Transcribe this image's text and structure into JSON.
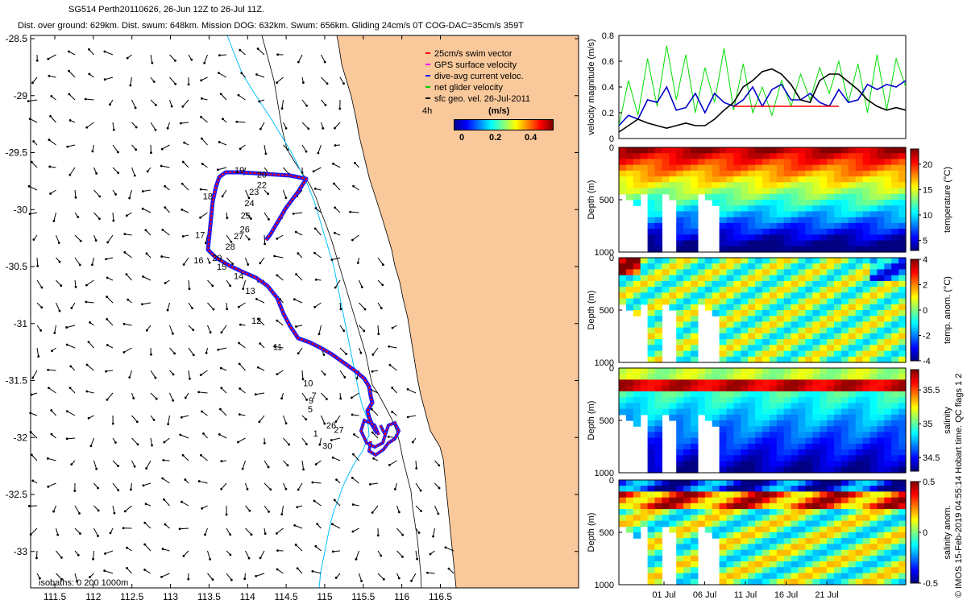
{
  "header": {
    "title_line1": "SG514 Perth20110626,  26-Jun 12Z to 26-Jul 11Z.",
    "title_line2": "Dist. over ground: 629km. Dist. swum: 648km. Mission DOG: 632km. Swum: 656km. Gliding 24cm/s 0T COG-DAC=35cm/s 359T"
  },
  "map": {
    "lon_ticks": [
      "111.5",
      "112",
      "112.5",
      "113",
      "113.5",
      "114",
      "114.5",
      "115",
      "115.5",
      "116",
      "116.5"
    ],
    "lat_ticks": [
      "-28.5",
      "-29",
      "-29.5",
      "-30",
      "-30.5",
      "-31",
      "-31.5",
      "-32",
      "-32.5",
      "-33"
    ],
    "isobaths_label": "isobaths: 0   200  1000m",
    "scale_label": "4h",
    "land_color": "#f9c89b",
    "legend": [
      {
        "label": "25cm/s swim vector",
        "color": "#ff0000"
      },
      {
        "label": "GPS surface velocity",
        "color": "#ff00ff"
      },
      {
        "label": "dive-avg current veloc.",
        "color": "#0000ff"
      },
      {
        "label": "net glider velocity",
        "color": "#00cc00"
      },
      {
        "label": "sfc geo. vel. 26-Jul-2011",
        "color": "#000000"
      }
    ],
    "colorbar": {
      "title": "(m/s)",
      "ticks": [
        "0",
        "0.2",
        "0.4"
      ]
    },
    "day_labels": [
      {
        "label": "1",
        "lon": 114.85,
        "lat": -31.99
      },
      {
        "label": "5",
        "lon": 114.78,
        "lat": -31.78
      },
      {
        "label": "7",
        "lon": 114.83,
        "lat": -31.66
      },
      {
        "label": "9",
        "lon": 114.79,
        "lat": -31.7
      },
      {
        "label": "10",
        "lon": 114.72,
        "lat": -31.55
      },
      {
        "label": "11",
        "lon": 114.33,
        "lat": -31.23
      },
      {
        "label": "12",
        "lon": 114.05,
        "lat": -31.0
      },
      {
        "label": "13",
        "lon": 113.97,
        "lat": -30.74
      },
      {
        "label": "14",
        "lon": 113.82,
        "lat": -30.61
      },
      {
        "label": "15",
        "lon": 113.6,
        "lat": -30.53
      },
      {
        "label": "16",
        "lon": 113.3,
        "lat": -30.47
      },
      {
        "label": "17",
        "lon": 113.32,
        "lat": -30.25
      },
      {
        "label": "18",
        "lon": 113.42,
        "lat": -29.91
      },
      {
        "label": "19",
        "lon": 113.83,
        "lat": -29.68
      },
      {
        "label": "20",
        "lon": 114.12,
        "lat": -29.72
      },
      {
        "label": "22",
        "lon": 114.12,
        "lat": -29.81
      },
      {
        "label": "23",
        "lon": 114.02,
        "lat": -29.87
      },
      {
        "label": "24",
        "lon": 113.96,
        "lat": -29.97
      },
      {
        "label": "25",
        "lon": 113.91,
        "lat": -30.08
      },
      {
        "label": "26",
        "lon": 113.9,
        "lat": -30.2
      },
      {
        "label": "27",
        "lon": 113.82,
        "lat": -30.26
      },
      {
        "label": "28",
        "lon": 113.71,
        "lat": -30.35
      },
      {
        "label": "29",
        "lon": 113.54,
        "lat": -30.45
      },
      {
        "label": "30",
        "lon": 114.97,
        "lat": -32.1
      },
      {
        "label": "26",
        "lon": 115.02,
        "lat": -31.92
      },
      {
        "label": "27",
        "lon": 115.12,
        "lat": -31.96
      }
    ]
  },
  "watermark": "© IMOS 15-Feb-2019 04:55:14 Hobart time. QC flags 1  2",
  "chart_data": [
    {
      "type": "line",
      "title": "",
      "ylabel": "velocity magnitude (m/s)",
      "ylim": [
        0,
        0.8
      ],
      "yticks": [
        "0",
        "0.2",
        "0.4",
        "0.6",
        "0.8"
      ],
      "xlim": [
        0,
        30
      ],
      "series": [
        {
          "color": "#00dd00",
          "values": [
            0.1,
            0.45,
            0.18,
            0.62,
            0.25,
            0.72,
            0.3,
            0.65,
            0.2,
            0.55,
            0.28,
            0.7,
            0.22,
            0.58,
            0.2,
            0.4,
            0.18,
            0.45,
            0.25,
            0.5,
            0.3,
            0.55,
            0.35,
            0.6,
            0.28,
            0.58,
            0.2,
            0.65,
            0.22,
            0.62,
            0.4
          ]
        },
        {
          "color": "#0000cc",
          "values": [
            0.1,
            0.18,
            0.15,
            0.3,
            0.28,
            0.4,
            0.22,
            0.24,
            0.35,
            0.2,
            0.35,
            0.28,
            0.25,
            0.3,
            0.4,
            0.25,
            0.38,
            0.42,
            0.3,
            0.3,
            0.35,
            0.28,
            0.25,
            0.38,
            0.28,
            0.3,
            0.42,
            0.38,
            0.42,
            0.4,
            0.45
          ]
        },
        {
          "color": "#000000",
          "values": [
            0.05,
            0.1,
            0.15,
            0.12,
            0.1,
            0.08,
            0.1,
            0.12,
            0.1,
            0.1,
            0.15,
            0.22,
            0.28,
            0.4,
            0.45,
            0.52,
            0.54,
            0.5,
            0.42,
            0.3,
            0.28,
            0.45,
            0.5,
            0.5,
            0.44,
            0.38,
            0.3,
            0.25,
            0.22,
            0.24,
            0.22
          ]
        },
        {
          "color": "#ff0000",
          "values": [
            null,
            null,
            null,
            null,
            null,
            null,
            null,
            null,
            null,
            null,
            null,
            null,
            0.25,
            0.25,
            0.25,
            0.25,
            0.25,
            0.25,
            0.25,
            0.25,
            0.25,
            0.25,
            0.25,
            0.25,
            null,
            null,
            null,
            null,
            null,
            null,
            null
          ]
        }
      ]
    },
    {
      "type": "heatmap",
      "ylabel": "Depth (m)",
      "yticks": [
        "0",
        "500",
        "1000"
      ],
      "colorbar_label": "temperature (°C)",
      "colorbar_ticks": [
        "5",
        "10",
        "15",
        "20"
      ],
      "clim": [
        3,
        23
      ]
    },
    {
      "type": "heatmap",
      "ylabel": "Depth (m)",
      "yticks": [
        "0",
        "500",
        "1000"
      ],
      "colorbar_label": "temp. anom. (°C)",
      "colorbar_ticks": [
        "-4",
        "-2",
        "0",
        "2",
        "4"
      ],
      "clim": [
        -4,
        4
      ]
    },
    {
      "type": "heatmap",
      "ylabel": "Depth (m)",
      "yticks": [
        "0",
        "500",
        "1000"
      ],
      "colorbar_label": "salinity",
      "colorbar_ticks": [
        "34.5",
        "35",
        "35.5"
      ],
      "clim": [
        34.3,
        35.8
      ]
    },
    {
      "type": "heatmap",
      "ylabel": "Depth (m)",
      "yticks": [
        "0",
        "500",
        "1000"
      ],
      "colorbar_label": "salinity anom.",
      "colorbar_ticks": [
        "-0.5",
        "0",
        "0.5"
      ],
      "clim": [
        -0.5,
        0.5
      ],
      "xticks": [
        "01 Jul",
        "06 Jul",
        "11 Jul",
        "16 Jul",
        "21 Jul"
      ]
    }
  ]
}
